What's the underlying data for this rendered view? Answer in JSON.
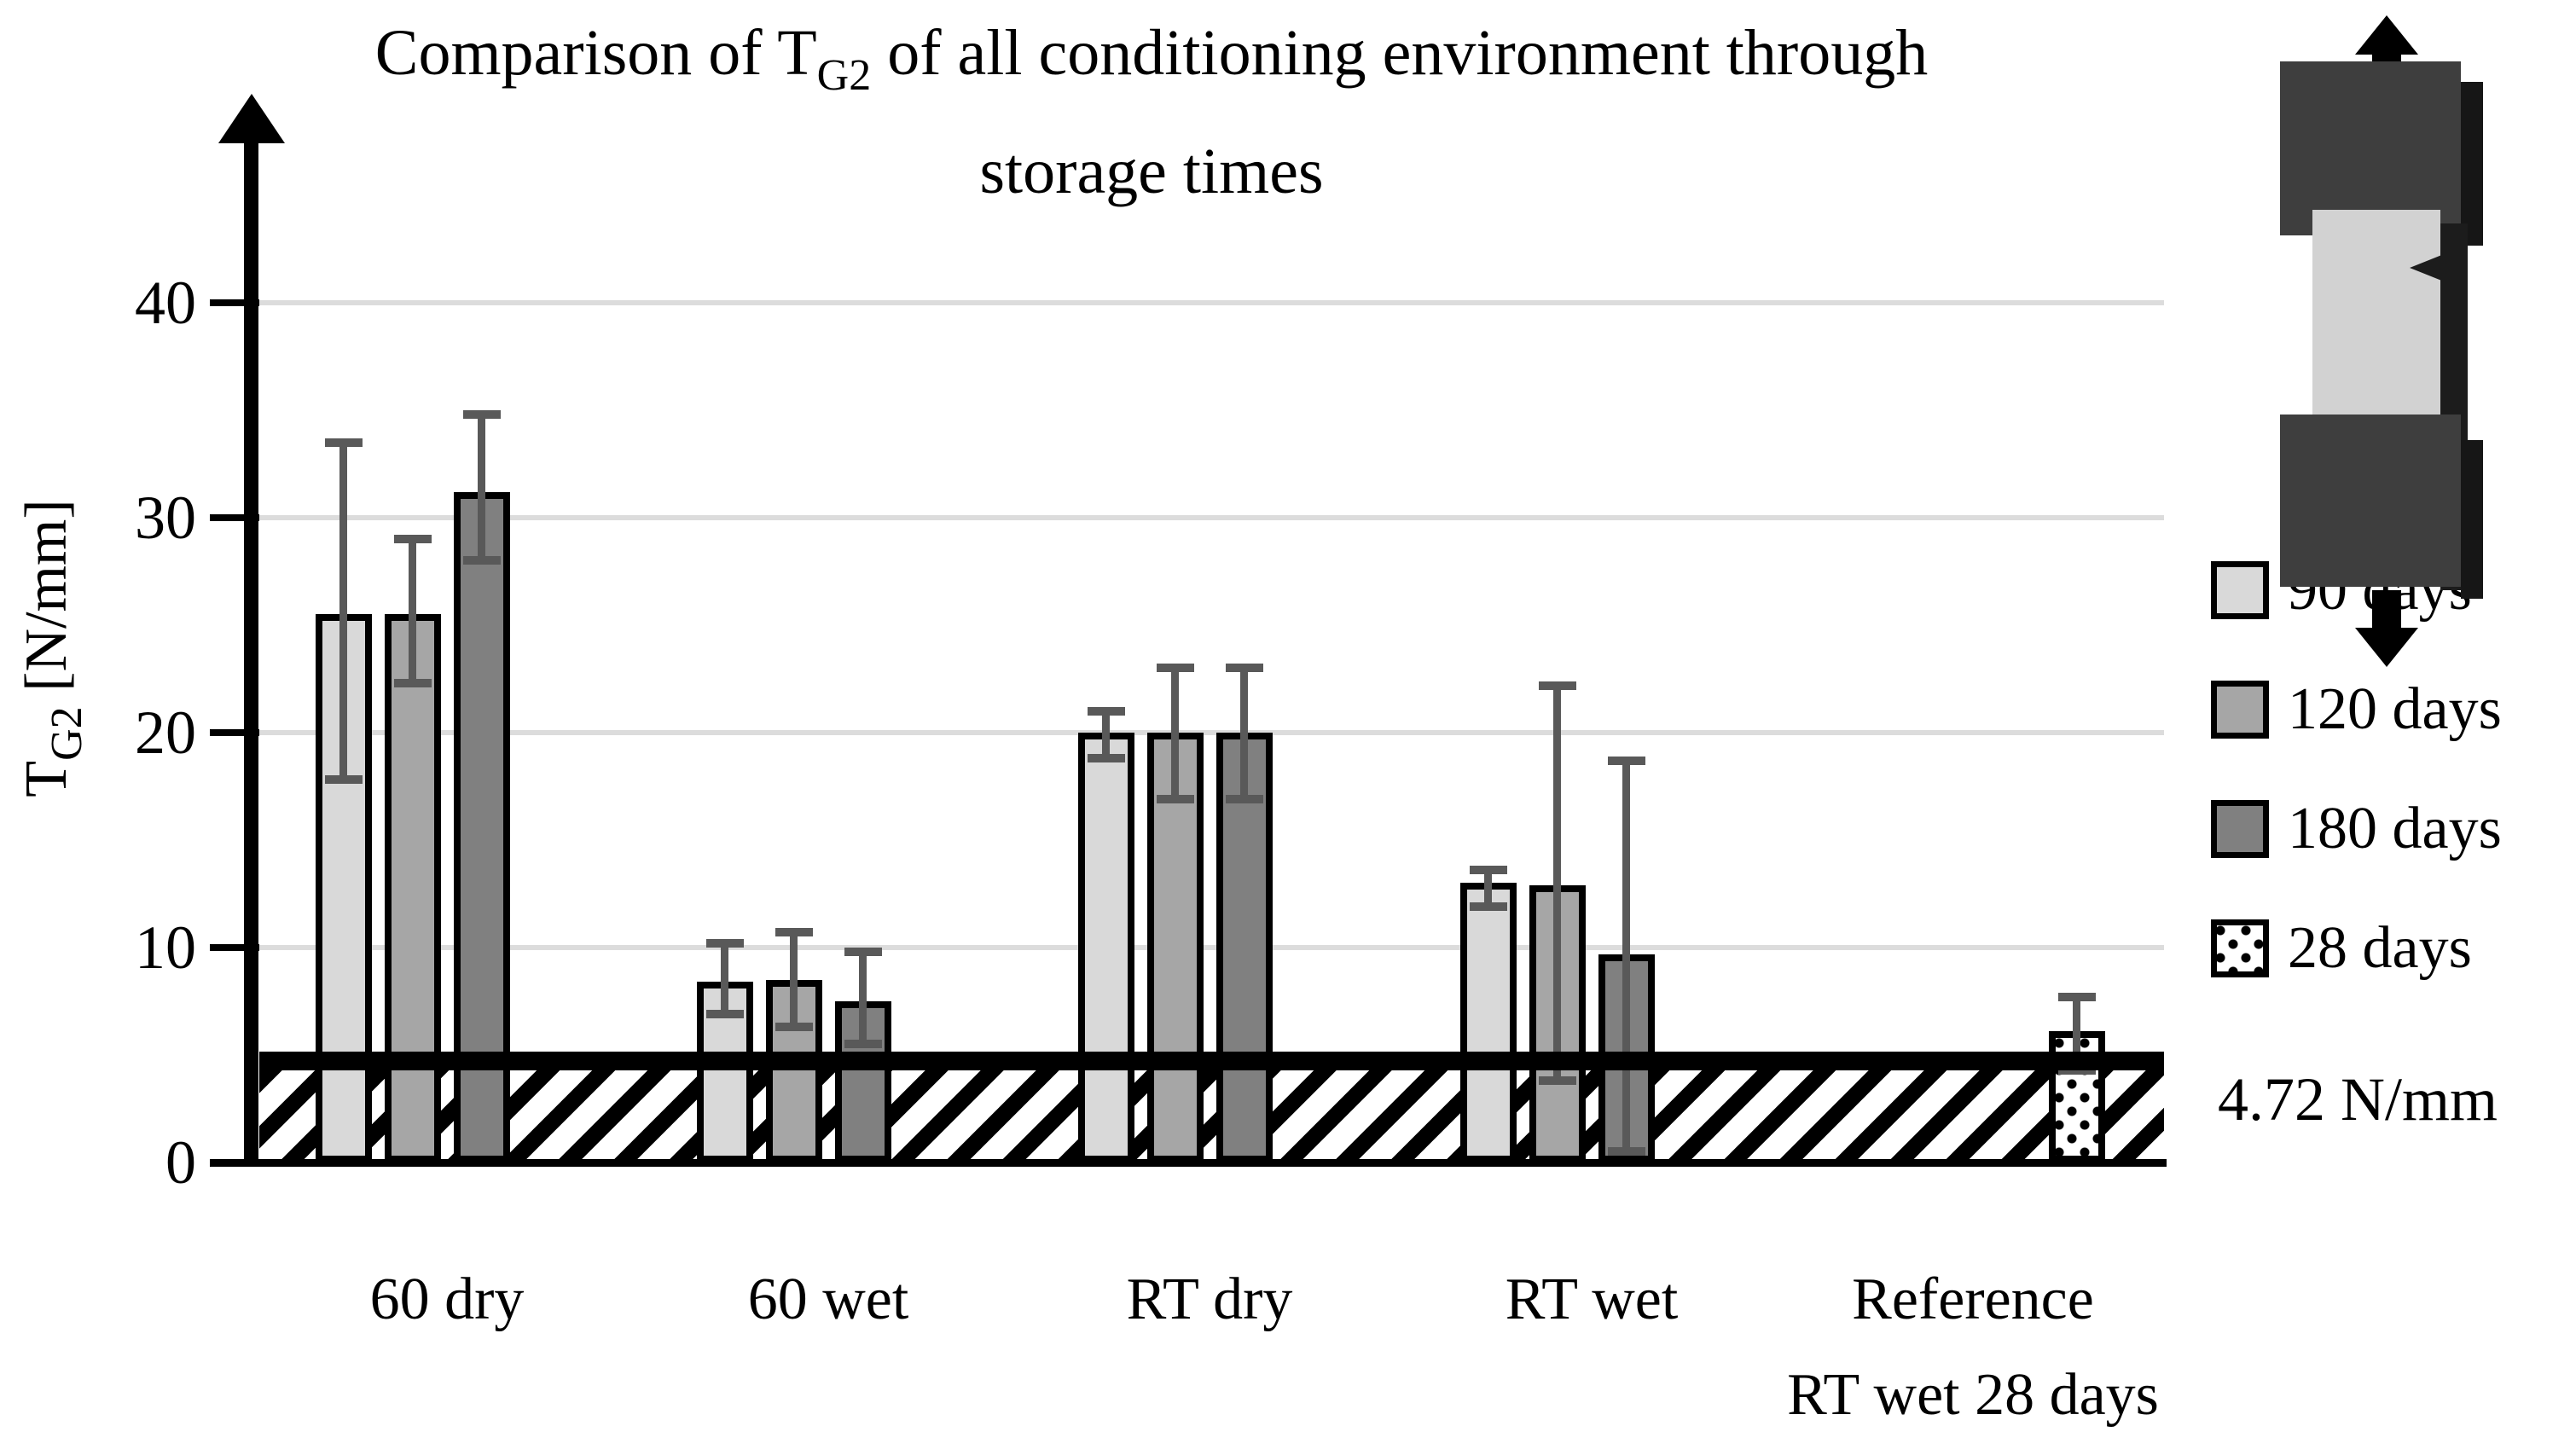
{
  "title": {
    "line1_pre": "Comparison of T",
    "line1_sub": "G2",
    "line1_post": " of all conditioning environment through",
    "line2": "storage times"
  },
  "y_axis": {
    "label_pre": "T",
    "label_sub": "G2",
    "label_post": " [N/mm]"
  },
  "chart_data": {
    "type": "bar",
    "title": "Comparison of TG2 of all conditioning environment through storage times",
    "ylabel": "TG2 [N/mm]",
    "xlabel": "",
    "ylim": [
      0,
      44
    ],
    "grid": true,
    "legend_position": "right",
    "y_ticks": [
      0,
      10,
      20,
      30,
      40
    ],
    "categories": [
      "60 dry",
      "60 wet",
      "RT dry",
      "RT wet",
      "Reference RT wet 28 days"
    ],
    "category_labels": [
      [
        "60 dry"
      ],
      [
        "60 wet"
      ],
      [
        "RT dry"
      ],
      [
        "RT wet"
      ],
      [
        "Reference",
        "RT wet 28 days"
      ]
    ],
    "series": [
      {
        "name": "90 days",
        "color": "#d9d9d9",
        "values": [
          25.5,
          8.4,
          20.0,
          13.0,
          null
        ],
        "errors": [
          [
            17.8,
            33.5
          ],
          [
            6.9,
            10.2
          ],
          [
            18.8,
            21.0
          ],
          [
            11.9,
            13.6
          ],
          null
        ]
      },
      {
        "name": "120 days",
        "color": "#a6a6a6",
        "values": [
          25.5,
          8.5,
          20.0,
          12.9,
          null
        ],
        "errors": [
          [
            22.3,
            29.0
          ],
          [
            6.3,
            10.7
          ],
          [
            16.9,
            23.0
          ],
          [
            3.8,
            22.2
          ],
          null
        ]
      },
      {
        "name": "180 days",
        "color": "#808080",
        "values": [
          31.2,
          7.5,
          20.0,
          9.7,
          null
        ],
        "errors": [
          [
            28.0,
            34.8
          ],
          [
            5.5,
            9.8
          ],
          [
            16.9,
            23.0
          ],
          [
            0.5,
            18.7
          ],
          null
        ]
      },
      {
        "name": "28 days",
        "color": "#ffffff",
        "pattern": "dots",
        "values": [
          null,
          null,
          null,
          null,
          6.1
        ],
        "errors": [
          null,
          null,
          null,
          null,
          [
            4.3,
            7.7
          ]
        ]
      }
    ],
    "threshold": {
      "value": 4.72,
      "label": "4.72 N/mm",
      "band": "hatched from 0 to threshold"
    }
  }
}
